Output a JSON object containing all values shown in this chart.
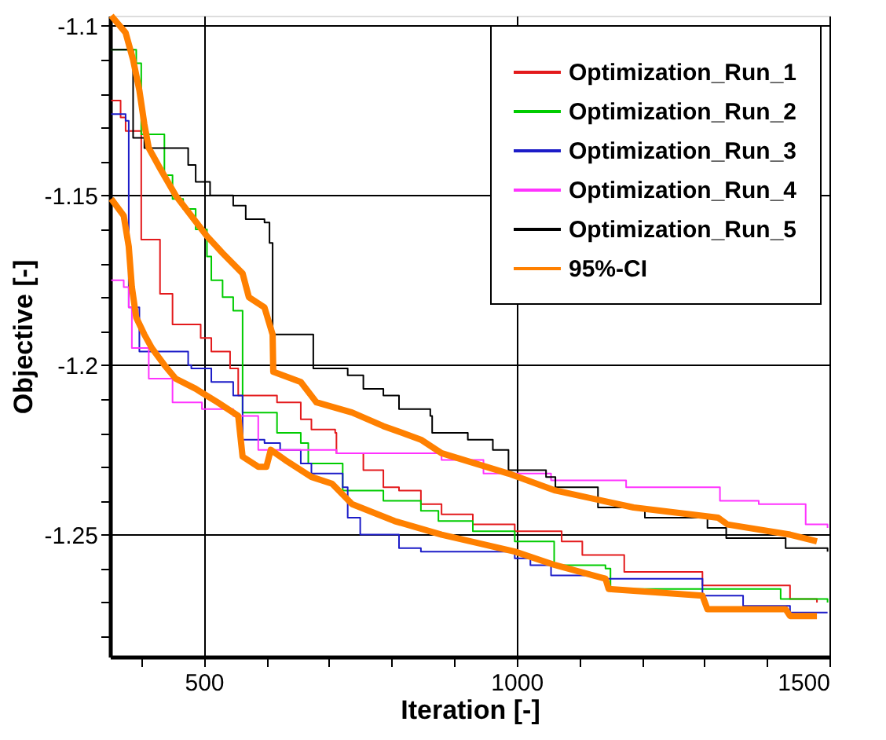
{
  "chart_data": {
    "type": "step",
    "xlabel": "Iteration [-]",
    "ylabel": "Objective [-]",
    "xlim": [
      350,
      1500
    ],
    "ylim": [
      -1.286,
      -1.097
    ],
    "xticks": [
      {
        "value": 400,
        "label": null
      },
      500,
      {
        "value": 600,
        "label": null
      },
      {
        "value": 700,
        "label": null
      },
      {
        "value": 800,
        "label": null
      },
      {
        "value": 900,
        "label": null
      },
      1000,
      {
        "value": 1100,
        "label": null
      },
      {
        "value": 1200,
        "label": null
      },
      {
        "value": 1300,
        "label": null
      },
      {
        "value": 1400,
        "label": null
      },
      1500
    ],
    "yticks": [
      {
        "value": -1.28,
        "label": null
      },
      {
        "value": -1.27,
        "label": null
      },
      {
        "value": -1.26,
        "label": null
      },
      -1.25,
      {
        "value": -1.24,
        "label": null
      },
      {
        "value": -1.23,
        "label": null
      },
      {
        "value": -1.22,
        "label": null
      },
      {
        "value": -1.21,
        "label": null
      },
      -1.2,
      {
        "value": -1.19,
        "label": null
      },
      {
        "value": -1.18,
        "label": null
      },
      {
        "value": -1.17,
        "label": null
      },
      {
        "value": -1.16,
        "label": null
      },
      -1.15,
      {
        "value": -1.14,
        "label": null
      },
      {
        "value": -1.13,
        "label": null
      },
      {
        "value": -1.12,
        "label": null
      },
      {
        "value": -1.11,
        "label": null
      },
      -1.1
    ],
    "grid": true,
    "legend": "top right",
    "marker": "none",
    "line_style": "solid",
    "series": [
      {
        "name": "Optimization_Run_1",
        "color": "#e31a1c",
        "x": [
          352,
          367,
          375,
          400,
          430,
          450,
          495,
          512,
          542,
          555,
          617,
          655,
          672,
          710,
          712,
          755,
          787,
          812,
          847,
          880,
          930,
          997,
          1072,
          1105,
          1172,
          1297,
          1437,
          1480
        ],
        "values": [
          -1.122,
          -1.127,
          -1.131,
          -1.163,
          -1.179,
          -1.188,
          -1.192,
          -1.196,
          -1.201,
          -1.209,
          -1.211,
          -1.216,
          -1.219,
          -1.22,
          -1.226,
          -1.231,
          -1.236,
          -1.237,
          -1.241,
          -1.244,
          -1.247,
          -1.249,
          -1.252,
          -1.256,
          -1.261,
          -1.265,
          -1.269,
          -1.27
        ]
      },
      {
        "name": "Optimization_Run_2",
        "color": "#00cc00",
        "x": [
          352,
          392,
          400,
          422,
          437,
          450,
          467,
          487,
          505,
          512,
          530,
          547,
          562,
          617,
          655,
          667,
          722,
          787,
          847,
          875,
          930,
          997,
          1060,
          1142,
          1150,
          1422,
          1497
        ],
        "values": [
          -1.107,
          -1.111,
          -1.132,
          -1.132,
          -1.144,
          -1.151,
          -1.154,
          -1.16,
          -1.168,
          -1.175,
          -1.18,
          -1.184,
          -1.214,
          -1.22,
          -1.223,
          -1.229,
          -1.237,
          -1.24,
          -1.243,
          -1.246,
          -1.249,
          -1.252,
          -1.259,
          -1.26,
          -1.266,
          -1.269,
          -1.27
        ]
      },
      {
        "name": "Optimization_Run_3",
        "color": "#1c1cc8",
        "x": [
          352,
          375,
          380,
          397,
          475,
          480,
          512,
          547,
          562,
          597,
          622,
          655,
          672,
          722,
          730,
          750,
          812,
          847,
          997,
          1022,
          1055,
          1130,
          1297,
          1362,
          1437,
          1497
        ],
        "values": [
          -1.126,
          -1.128,
          -1.183,
          -1.196,
          -1.2,
          -1.201,
          -1.205,
          -1.209,
          -1.222,
          -1.223,
          -1.225,
          -1.229,
          -1.232,
          -1.236,
          -1.245,
          -1.25,
          -1.254,
          -1.255,
          -1.257,
          -1.259,
          -1.262,
          -1.263,
          -1.268,
          -1.271,
          -1.273,
          -1.273
        ]
      },
      {
        "name": "Optimization_Run_4",
        "color": "#ff33ff",
        "x": [
          352,
          372,
          380,
          385,
          412,
          450,
          497,
          547,
          587,
          712,
          880,
          947,
          1055,
          1175,
          1325,
          1387,
          1462,
          1497
        ],
        "values": [
          -1.175,
          -1.177,
          -1.183,
          -1.195,
          -1.204,
          -1.211,
          -1.213,
          -1.215,
          -1.225,
          -1.226,
          -1.228,
          -1.232,
          -1.234,
          -1.236,
          -1.24,
          -1.241,
          -1.247,
          -1.248
        ]
      },
      {
        "name": "Optimization_Run_5",
        "color": "#000000",
        "x": [
          352,
          387,
          405,
          475,
          487,
          510,
          547,
          567,
          597,
          605,
          610,
          675,
          730,
          755,
          787,
          812,
          862,
          865,
          922,
          962,
          987,
          1047,
          1062,
          1130,
          1205,
          1305,
          1335,
          1430,
          1497
        ],
        "values": [
          -1.107,
          -1.133,
          -1.136,
          -1.141,
          -1.146,
          -1.15,
          -1.153,
          -1.157,
          -1.158,
          -1.164,
          -1.191,
          -1.201,
          -1.203,
          -1.207,
          -1.209,
          -1.213,
          -1.215,
          -1.22,
          -1.222,
          -1.225,
          -1.231,
          -1.233,
          -1.236,
          -1.242,
          -1.245,
          -1.248,
          -1.251,
          -1.254,
          -1.255
        ]
      },
      {
        "name": "95%-CI",
        "type": "line",
        "color": "#ff8000",
        "x": [
          352,
          375,
          387,
          397,
          405,
          412,
          430,
          455,
          480,
          505,
          530,
          562,
          572,
          597,
          610,
          611,
          655,
          680,
          737,
          787,
          847,
          880,
          987,
          1062,
          1187,
          1322,
          1337,
          1437,
          1480
        ],
        "values": [
          -1.097,
          -1.102,
          -1.11,
          -1.119,
          -1.129,
          -1.136,
          -1.142,
          -1.15,
          -1.156,
          -1.162,
          -1.167,
          -1.173,
          -1.18,
          -1.183,
          -1.191,
          -1.202,
          -1.205,
          -1.211,
          -1.214,
          -1.218,
          -1.222,
          -1.226,
          -1.232,
          -1.237,
          -1.242,
          -1.245,
          -1.247,
          -1.25,
          -1.252
        ]
      },
      {
        "type": "line",
        "color": "#ff8000",
        "x": [
          352,
          372,
          380,
          385,
          392,
          405,
          417,
          437,
          455,
          487,
          522,
          555,
          562,
          587,
          600,
          607,
          630,
          672,
          705,
          737,
          805,
          880,
          997,
          1062,
          1142,
          1147,
          1297,
          1305,
          1430,
          1437,
          1480
        ],
        "values": [
          -1.151,
          -1.156,
          -1.165,
          -1.177,
          -1.186,
          -1.191,
          -1.195,
          -1.2,
          -1.204,
          -1.207,
          -1.211,
          -1.215,
          -1.227,
          -1.23,
          -1.23,
          -1.225,
          -1.228,
          -1.233,
          -1.235,
          -1.241,
          -1.246,
          -1.25,
          -1.255,
          -1.259,
          -1.263,
          -1.266,
          -1.268,
          -1.272,
          -1.272,
          -1.274,
          -1.274
        ]
      }
    ]
  }
}
